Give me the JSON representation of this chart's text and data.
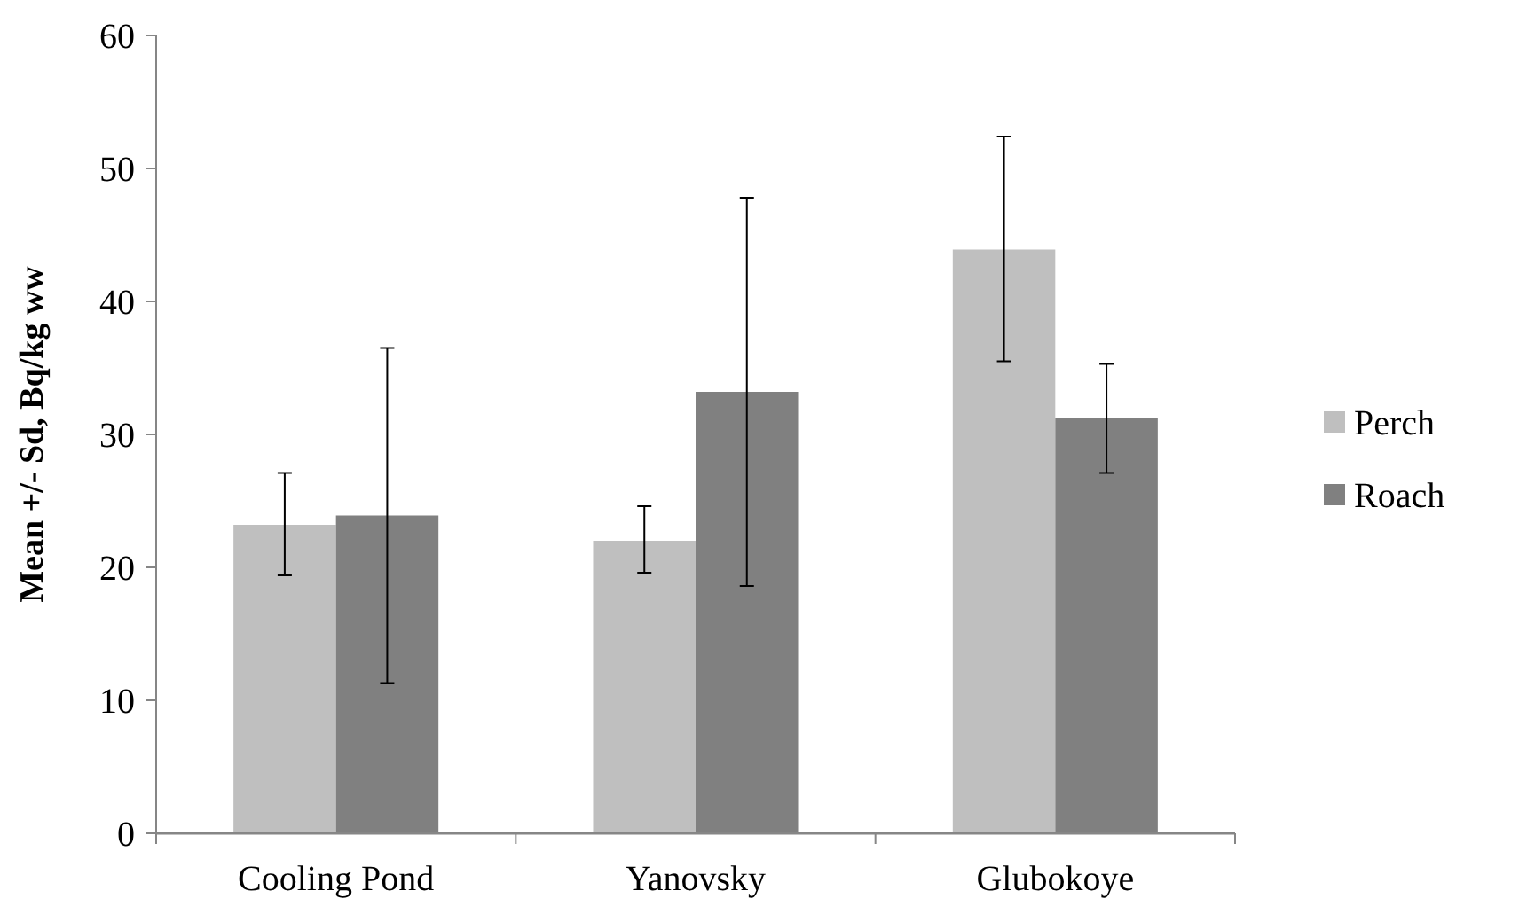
{
  "chart_data": {
    "type": "bar",
    "ylabel": "Mean +/- Sd, Bq/kg ww",
    "categories": [
      "Cooling Pond",
      "Yanovsky",
      "Glubokoye"
    ],
    "series": [
      {
        "name": "Perch",
        "color": "#bfbfbf",
        "values": [
          23.2,
          22.0,
          43.9
        ],
        "errors": [
          [
            19.4,
            27.1
          ],
          [
            19.6,
            24.6
          ],
          [
            35.5,
            52.4
          ]
        ]
      },
      {
        "name": "Roach",
        "color": "#808080",
        "values": [
          23.9,
          33.2,
          31.2
        ],
        "errors": [
          [
            11.3,
            36.5
          ],
          [
            18.6,
            47.8
          ],
          [
            27.1,
            35.3
          ]
        ]
      }
    ],
    "ylim": [
      0,
      60
    ],
    "yticks": [
      0,
      10,
      20,
      30,
      40,
      50,
      60
    ],
    "grid": false,
    "legend": "right"
  }
}
